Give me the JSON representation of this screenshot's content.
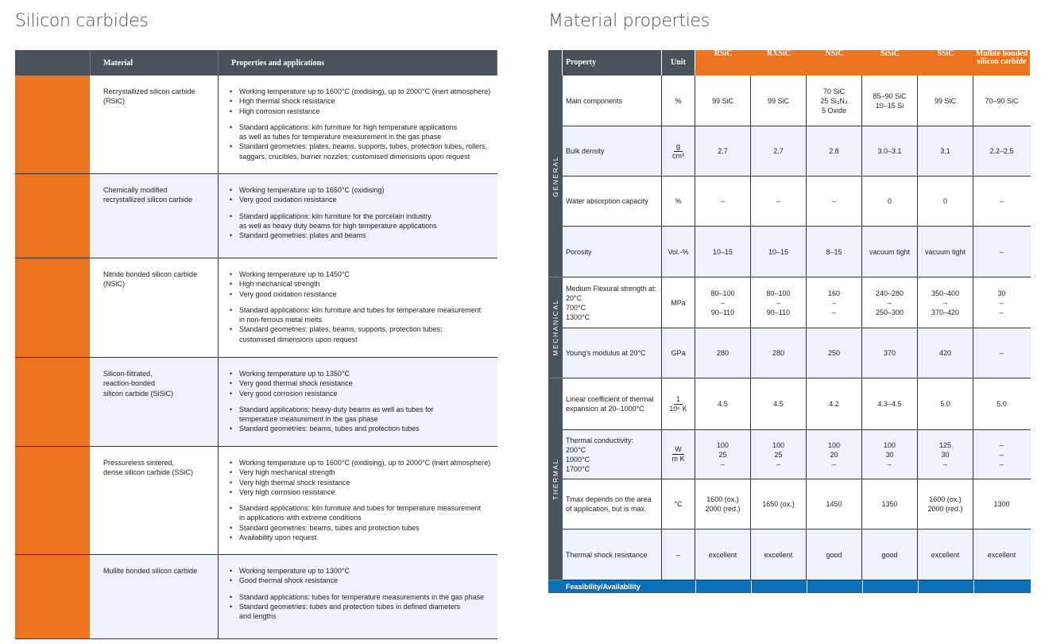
{
  "left": {
    "title": "Silicon carbides",
    "col_material": "Material",
    "col_properties": "Properties and applications",
    "rows": [
      {
        "name": "Recrystallized silicon carbide\n(RSiC)",
        "groups": [
          [
            "Working temperature up to 1600°C (oxidising), up to 2000°C (inert atmosphere)",
            "High thermal shock resistance",
            "High corrosion resistance"
          ],
          [
            "Standard applications: kiln furniture for high temperature applications\nas well as tubes for temperature measurement in the gas phase",
            "Standard geometries: plates, beams, supports, tubes, protection tubes, rollers,\nsaggars, crucibles, burner nozzles; customised dimensions upon request"
          ]
        ]
      },
      {
        "name": "Chemically modified\nrecrystallized silicon carbide",
        "groups": [
          [
            "Working temperature up to 1650°C (oxidising)",
            "Very good oxidation resistance"
          ],
          [
            "Standard applications: kiln furniture for the porcelain industry\nas well as heavy duty beams for high temperature applications",
            "Standard geometries: plates and beams"
          ]
        ]
      },
      {
        "name": "Nitride bonded silicon carbide\n(NSiC)",
        "groups": [
          [
            "Working temperature up to 1450°C",
            "High mechanical strength",
            "Very good oxidation resistance"
          ],
          [
            "Standard applications: kiln furniture and tubes for temperature measurement\nin non-ferrous metal melts",
            "Standard geometries: plates, beams, supports, protection tubes;\ncustomised dimensions upon request"
          ]
        ]
      },
      {
        "name": "Silicon-filtrated,\nreaction-bonded\nsilicon carbide (SiSiC)",
        "groups": [
          [
            "Working temperature up to 1350°C",
            "Very good thermal shock resistance",
            "Very good corrosion resistance"
          ],
          [
            "Standard applications: heavy-duty beams as well as tubes for\ntemperature measurement in the gas phase",
            "Standard geometries: beams, tubes and protection tubes"
          ]
        ]
      },
      {
        "name": "Pressureless sintered,\ndense silicon carbide (SSiC)",
        "groups": [
          [
            "Working temperature up to 1600°C (oxidising), up to 2000°C (inert atmosphere)",
            "Very high mechanical strength",
            "Very high thermal shock resistance",
            "Very high corrosion resistance"
          ],
          [
            "Standard applications: kiln furniture and tubes for temperature measurement\nin applications with extreme conditions",
            "Standard geometries: beams, tubes and protection tubes",
            "Availability upon request"
          ]
        ]
      },
      {
        "name": "Mullite bonded silicon carbide",
        "groups": [
          [
            "Working temperature up to 1300°C",
            "Good thermal shock resistance"
          ],
          [
            "Standard applications: tubes for temperature measurements in the gas phase",
            "Standard geometries: tubes and protection tubes in defined diameters\nand lengths"
          ]
        ]
      }
    ]
  },
  "right": {
    "title": "Material properties",
    "col_property": "Property",
    "col_unit": "Unit",
    "materials": [
      "RSiC",
      "RXSiC",
      "NSiC",
      "SiSiC",
      "SSiC",
      "Mullite bonded\nsilicon carbide"
    ],
    "groups": [
      {
        "label": "GENERAL",
        "rows": [
          {
            "property": "Main components",
            "unit": "%",
            "values": [
              "99 SiC",
              "99 SiC",
              "70 SiC\n25 Si₃N₄\n5 Oxide",
              "85–90 SiC\n10–15 Si",
              "99 SiC",
              "70–90 SiC"
            ]
          },
          {
            "property": "Bulk density",
            "unit_num": "g",
            "unit_den": "cm³",
            "values": [
              "2.7",
              "2.7",
              "2.8",
              "3.0–3.1",
              "3.1",
              "2.2–2.5"
            ]
          },
          {
            "property": "Water absorption capacity",
            "unit": "%",
            "values": [
              "–",
              "–",
              "–",
              "0",
              "0",
              "–"
            ]
          },
          {
            "property": "Porosity",
            "unit": "Vol.-%",
            "values": [
              "10–15",
              "10–15",
              "8–15",
              "vacuum tight",
              "vacuum tight",
              "–"
            ]
          }
        ]
      },
      {
        "label": "MECHANICAL",
        "rows": [
          {
            "property": "Medium Flexural strength at:\n20°C\n700°C\n1300°C",
            "unit": "MPa",
            "values": [
              "80–100\n–\n90–110",
              "80–100\n–\n90–110",
              "160\n–\n–",
              "240–280\n–\n250–300",
              "350–400\n–\n370–420",
              "30\n–\n–"
            ]
          },
          {
            "property": "Young's modulus at 20°C",
            "unit": "GPa",
            "values": [
              "280",
              "280",
              "250",
              "370",
              "420",
              "–"
            ]
          }
        ]
      },
      {
        "label": "THERMAL",
        "rows": [
          {
            "property": "Linear coefficient of thermal\nexpansion at 20–1000°C",
            "unit_num": "1",
            "unit_den": "10⁶ K",
            "values": [
              "4.5",
              "4.5",
              "4.2",
              "4.3–4.5",
              "5.0",
              "5.0"
            ]
          },
          {
            "property": "Thermal conductivity:\n200°C\n1000°C\n1700°C",
            "unit_num": "W",
            "unit_den": "m K",
            "values": [
              "100\n25\n–",
              "100\n25\n–",
              "100\n20\n–",
              "100\n30\n–",
              "125\n30\n–",
              "–\n–\n–"
            ]
          },
          {
            "property": "Tmax depends on the area\nof application, but is max.",
            "unit": "°C",
            "values": [
              "1600 (ox.)\n2000 (red.)",
              "1650 (ox.)",
              "1450",
              "1350",
              "1600 (ox.)\n2000 (red.)",
              "1300"
            ]
          },
          {
            "property": "Thermal shock resistance",
            "unit": "–",
            "values": [
              "excellent",
              "excellent",
              "good",
              "good",
              "excellent",
              "excellent"
            ]
          }
        ]
      }
    ],
    "footer": "Feasibility/Availability"
  }
}
